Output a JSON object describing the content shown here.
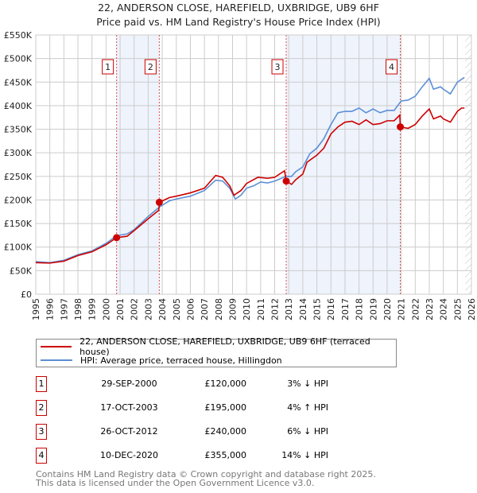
{
  "chart_data": {
    "type": "line",
    "title": "22, ANDERSON CLOSE, HAREFIELD, UXBRIDGE, UB9 6HF",
    "subtitle": "Price paid vs. HM Land Registry's House Price Index (HPI)",
    "xlim": [
      1995,
      2026
    ],
    "ylim": [
      0,
      550000
    ],
    "x_ticks": [
      "1995",
      "1996",
      "1997",
      "1998",
      "1999",
      "2000",
      "2001",
      "2002",
      "2003",
      "2004",
      "2005",
      "2006",
      "2007",
      "2008",
      "2009",
      "2010",
      "2011",
      "2012",
      "2013",
      "2014",
      "2015",
      "2016",
      "2017",
      "2018",
      "2019",
      "2020",
      "2021",
      "2022",
      "2023",
      "2024",
      "2025",
      "2026"
    ],
    "y_ticks": [
      {
        "v": 0,
        "label": "£0"
      },
      {
        "v": 50000,
        "label": "£50K"
      },
      {
        "v": 100000,
        "label": "£100K"
      },
      {
        "v": 150000,
        "label": "£150K"
      },
      {
        "v": 200000,
        "label": "£200K"
      },
      {
        "v": 250000,
        "label": "£250K"
      },
      {
        "v": 300000,
        "label": "£300K"
      },
      {
        "v": 350000,
        "label": "£350K"
      },
      {
        "v": 400000,
        "label": "£400K"
      },
      {
        "v": 450000,
        "label": "£450K"
      },
      {
        "v": 500000,
        "label": "£500K"
      },
      {
        "v": 550000,
        "label": "£550K"
      }
    ],
    "grid": true,
    "legend_position": "below",
    "series": [
      {
        "name": "22, ANDERSON CLOSE, HAREFIELD, UXBRIDGE, UB9 6HF (terraced house)",
        "color": "#cc0000",
        "points": [
          [
            1995,
            67
          ],
          [
            1996,
            66
          ],
          [
            1997,
            70
          ],
          [
            1998,
            82
          ],
          [
            1999,
            90
          ],
          [
            2000,
            105
          ],
          [
            2000.75,
            120
          ],
          [
            2001.5,
            123
          ],
          [
            2002,
            135
          ],
          [
            2003,
            160
          ],
          [
            2003.75,
            178
          ],
          [
            2003.8,
            195
          ],
          [
            2004.5,
            205
          ],
          [
            2005,
            208
          ],
          [
            2006,
            215
          ],
          [
            2007,
            225
          ],
          [
            2007.8,
            252
          ],
          [
            2008.3,
            248
          ],
          [
            2008.8,
            230
          ],
          [
            2009.1,
            210
          ],
          [
            2009.6,
            220
          ],
          [
            2010,
            235
          ],
          [
            2010.8,
            248
          ],
          [
            2011.5,
            246
          ],
          [
            2012,
            248
          ],
          [
            2012.7,
            262
          ],
          [
            2012.82,
            240
          ],
          [
            2013.2,
            233
          ],
          [
            2013.5,
            243
          ],
          [
            2014,
            255
          ],
          [
            2014.3,
            280
          ],
          [
            2015,
            295
          ],
          [
            2015.5,
            310
          ],
          [
            2016,
            340
          ],
          [
            2016.5,
            355
          ],
          [
            2017,
            365
          ],
          [
            2017.5,
            367
          ],
          [
            2018,
            360
          ],
          [
            2018.5,
            370
          ],
          [
            2019,
            360
          ],
          [
            2019.5,
            362
          ],
          [
            2020,
            368
          ],
          [
            2020.5,
            368
          ],
          [
            2020.9,
            380
          ],
          [
            2020.94,
            355
          ],
          [
            2021.5,
            352
          ],
          [
            2022,
            360
          ],
          [
            2022.5,
            378
          ],
          [
            2023,
            393
          ],
          [
            2023.3,
            372
          ],
          [
            2023.8,
            378
          ],
          [
            2024,
            372
          ],
          [
            2024.5,
            365
          ],
          [
            2025,
            388
          ],
          [
            2025.3,
            395
          ],
          [
            2025.5,
            395
          ]
        ]
      },
      {
        "name": "HPI: Average price, terraced house, Hillingdon",
        "color": "#5b8fd6",
        "points": [
          [
            1995,
            69
          ],
          [
            1996,
            67
          ],
          [
            1997,
            72
          ],
          [
            1998,
            84
          ],
          [
            1999,
            92
          ],
          [
            2000,
            108
          ],
          [
            2000.75,
            124
          ],
          [
            2001.5,
            128
          ],
          [
            2002,
            137
          ],
          [
            2003,
            165
          ],
          [
            2003.8,
            185
          ],
          [
            2004.5,
            198
          ],
          [
            2005,
            202
          ],
          [
            2006,
            208
          ],
          [
            2007,
            220
          ],
          [
            2007.8,
            242
          ],
          [
            2008.3,
            240
          ],
          [
            2008.8,
            225
          ],
          [
            2009.2,
            202
          ],
          [
            2009.6,
            210
          ],
          [
            2010,
            225
          ],
          [
            2010.5,
            230
          ],
          [
            2011,
            238
          ],
          [
            2011.5,
            236
          ],
          [
            2012,
            240
          ],
          [
            2012.8,
            250
          ],
          [
            2013.2,
            250
          ],
          [
            2013.5,
            260
          ],
          [
            2014,
            270
          ],
          [
            2014.5,
            298
          ],
          [
            2015,
            310
          ],
          [
            2015.5,
            330
          ],
          [
            2016,
            360
          ],
          [
            2016.5,
            385
          ],
          [
            2017,
            388
          ],
          [
            2017.5,
            388
          ],
          [
            2018,
            395
          ],
          [
            2018.5,
            385
          ],
          [
            2019,
            393
          ],
          [
            2019.5,
            385
          ],
          [
            2020,
            390
          ],
          [
            2020.5,
            390
          ],
          [
            2021,
            410
          ],
          [
            2021.5,
            412
          ],
          [
            2022,
            420
          ],
          [
            2022.5,
            440
          ],
          [
            2023,
            458
          ],
          [
            2023.3,
            435
          ],
          [
            2023.8,
            440
          ],
          [
            2024,
            435
          ],
          [
            2024.5,
            425
          ],
          [
            2025,
            450
          ],
          [
            2025.5,
            460
          ]
        ]
      }
    ],
    "sales": [
      {
        "id": "1",
        "x": 2000.75,
        "price": 120000
      },
      {
        "id": "2",
        "x": 2003.79,
        "price": 195000
      },
      {
        "id": "3",
        "x": 2012.82,
        "price": 240000
      },
      {
        "id": "4",
        "x": 2020.94,
        "price": 355000
      }
    ],
    "shaded_ranges": [
      [
        2000.75,
        2003.79
      ],
      [
        2012.82,
        2020.94
      ]
    ],
    "forecast_hatch_from": 2025.55
  },
  "legend": {
    "red_label": "22, ANDERSON CLOSE, HAREFIELD, UXBRIDGE, UB9 6HF (terraced house)",
    "blue_label": "HPI: Average price, terraced house, Hillingdon"
  },
  "transactions": [
    {
      "id": "1",
      "date": "29-SEP-2000",
      "price": "£120,000",
      "hpi": "3% ↓ HPI"
    },
    {
      "id": "2",
      "date": "17-OCT-2003",
      "price": "£195,000",
      "hpi": "4% ↑ HPI"
    },
    {
      "id": "3",
      "date": "26-OCT-2012",
      "price": "£240,000",
      "hpi": "6% ↓ HPI"
    },
    {
      "id": "4",
      "date": "10-DEC-2020",
      "price": "£355,000",
      "hpi": "14% ↓ HPI"
    }
  ],
  "footer": {
    "line1": "Contains HM Land Registry data © Crown copyright and database right 2025.",
    "line2": "This data is licensed under the Open Government Licence v3.0."
  }
}
